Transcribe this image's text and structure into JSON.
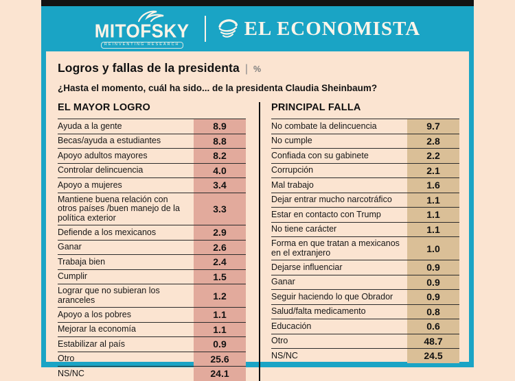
{
  "header": {
    "brand_left": {
      "name": "MITOFSKY",
      "tagline": "REINVENTING RESEARCH"
    },
    "brand_right": {
      "name": "EL ECONOMISTA"
    }
  },
  "title": {
    "text": "Logros y fallas de la presidenta",
    "separator": "|",
    "unit": "%"
  },
  "question": "¿Hasta el momento, cuál ha sido... de la presidenta Claudia Sheinbaum?",
  "colors": {
    "teal": "#1aa4c5",
    "peach_background": "#fbe4d1",
    "left_value_band": "#e2aa9c",
    "right_value_band": "#dabf97",
    "top_strip_black": "#131313",
    "text": "#111111"
  },
  "chart_data": [
    {
      "type": "table",
      "title": "EL MAYOR LOGRO",
      "unit": "%",
      "categories": [
        "Ayuda a la gente",
        "Becas/ayuda a estudiantes",
        "Apoyo adultos mayores",
        "Controlar delincuencia",
        "Apoyo a mujeres",
        "Mantiene buena relación con otros países /buen manejo de la política exterior",
        "Defiende a los mexicanos",
        "Ganar",
        "Trabaja bien",
        "Cumplir",
        "Lograr que no subieran los aranceles",
        "Apoyo a los pobres",
        "Mejorar la economía",
        "Estabilizar al país",
        "Otro",
        "NS/NC"
      ],
      "values": [
        "8.9",
        "8.8",
        "8.2",
        "4.0",
        "3.4",
        "3.3",
        "2.9",
        "2.6",
        "2.4",
        "1.5",
        "1.2",
        "1.1",
        "1.1",
        "0.9",
        "25.6",
        "24.1"
      ]
    },
    {
      "type": "table",
      "title": "PRINCIPAL FALLA",
      "unit": "%",
      "categories": [
        "No combate la delincuencia",
        "No cumple",
        "Confiada con su gabinete",
        "Corrupción",
        "Mal trabajo",
        "Dejar entrar mucho narcotráfico",
        "Estar en contacto con Trump",
        "No tiene carácter",
        "Forma en que tratan a mexicanos en el extranjero",
        "Dejarse influenciar",
        "Ganar",
        "Seguir haciendo lo que Obrador",
        "Salud/falta medicamento",
        "Educación",
        "Otro",
        "NS/NC"
      ],
      "values": [
        "9.7",
        "2.8",
        "2.2",
        "2.1",
        "1.6",
        "1.1",
        "1.1",
        "1.1",
        "1.0",
        "0.9",
        "0.9",
        "0.9",
        "0.8",
        "0.6",
        "48.7",
        "24.5"
      ]
    }
  ]
}
